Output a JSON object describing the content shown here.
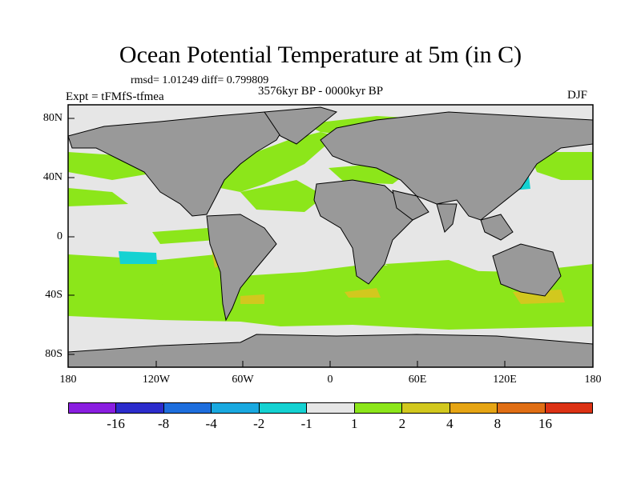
{
  "title": "Ocean Potential Temperature at 5m (in C)",
  "stats": "rmsd= 1.01249 diff= 0.799809",
  "experiment": "Expt = tFMfS-tfmea",
  "period": "3576kyr BP - 0000kyr BP",
  "season": "DJF",
  "y_axis_labels": [
    "80N",
    "40N",
    "0",
    "40S",
    "80S"
  ],
  "x_axis_labels": [
    "180",
    "120W",
    "60W",
    "0",
    "60E",
    "120E",
    "180"
  ],
  "colorbar": {
    "colors": [
      "#8a1ee0",
      "#2c2ccc",
      "#1e6edd",
      "#19a9e0",
      "#14d2d2",
      "#e6e6e6",
      "#8ce61a",
      "#d2c81e",
      "#e6a514",
      "#e06e14",
      "#dc3214"
    ],
    "labels": [
      "-16",
      "-8",
      "-4",
      "-2",
      "-1",
      "1",
      "2",
      "4",
      "8",
      "16"
    ]
  },
  "colors": {
    "land": "#999999",
    "neutral_ocean": "#e6e6e6",
    "anomaly_1_2": "#8ce61a",
    "anomaly_2_4": "#d2c81e",
    "anomaly_neg": "#14d2d2"
  }
}
